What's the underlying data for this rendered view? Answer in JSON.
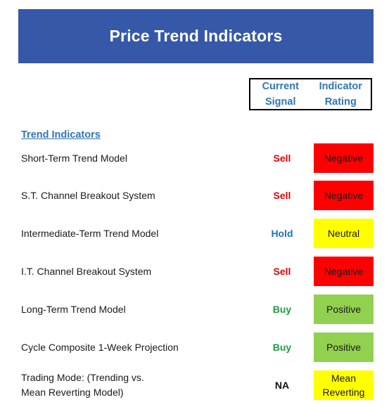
{
  "title": "Price Trend Indicators",
  "header": {
    "current_signal_line1": "Current",
    "current_signal_line2": "Signal",
    "indicator_rating_line1": "Indicator",
    "indicator_rating_line2": "Rating"
  },
  "section": {
    "title": "Trend Indicators"
  },
  "colors": {
    "banner": "#3558a8",
    "header_text": "#2e75b6",
    "sell": "#e00000",
    "hold": "#1f6fbf",
    "buy": "#1e9e3e",
    "na": "#111111",
    "negative_bg": "#ff0000",
    "neutral_bg": "#ffff00",
    "positive_bg": "#92d050",
    "mean_reverting_bg": "#ffff00"
  },
  "rows": [
    {
      "label": "Short-Term Trend Model",
      "signal": "Sell",
      "rating": "Negative"
    },
    {
      "label": "S.T. Channel Breakout System",
      "signal": "Sell",
      "rating": "Negative"
    },
    {
      "label": "Intermediate-Term Trend Model",
      "signal": "Hold",
      "rating": "Neutral"
    },
    {
      "label": "I.T. Channel Breakout System",
      "signal": "Sell",
      "rating": "Negative"
    },
    {
      "label": "Long-Term Trend Model",
      "signal": "Buy",
      "rating": "Positive"
    },
    {
      "label": "Cycle Composite 1-Week Projection",
      "signal": "Buy",
      "rating": "Positive"
    },
    {
      "label_line1": "Trading Mode: (Trending vs.",
      "label_line2": "Mean Reverting Model)",
      "signal": "NA",
      "rating_line1": "Mean",
      "rating_line2": "Reverting"
    }
  ]
}
